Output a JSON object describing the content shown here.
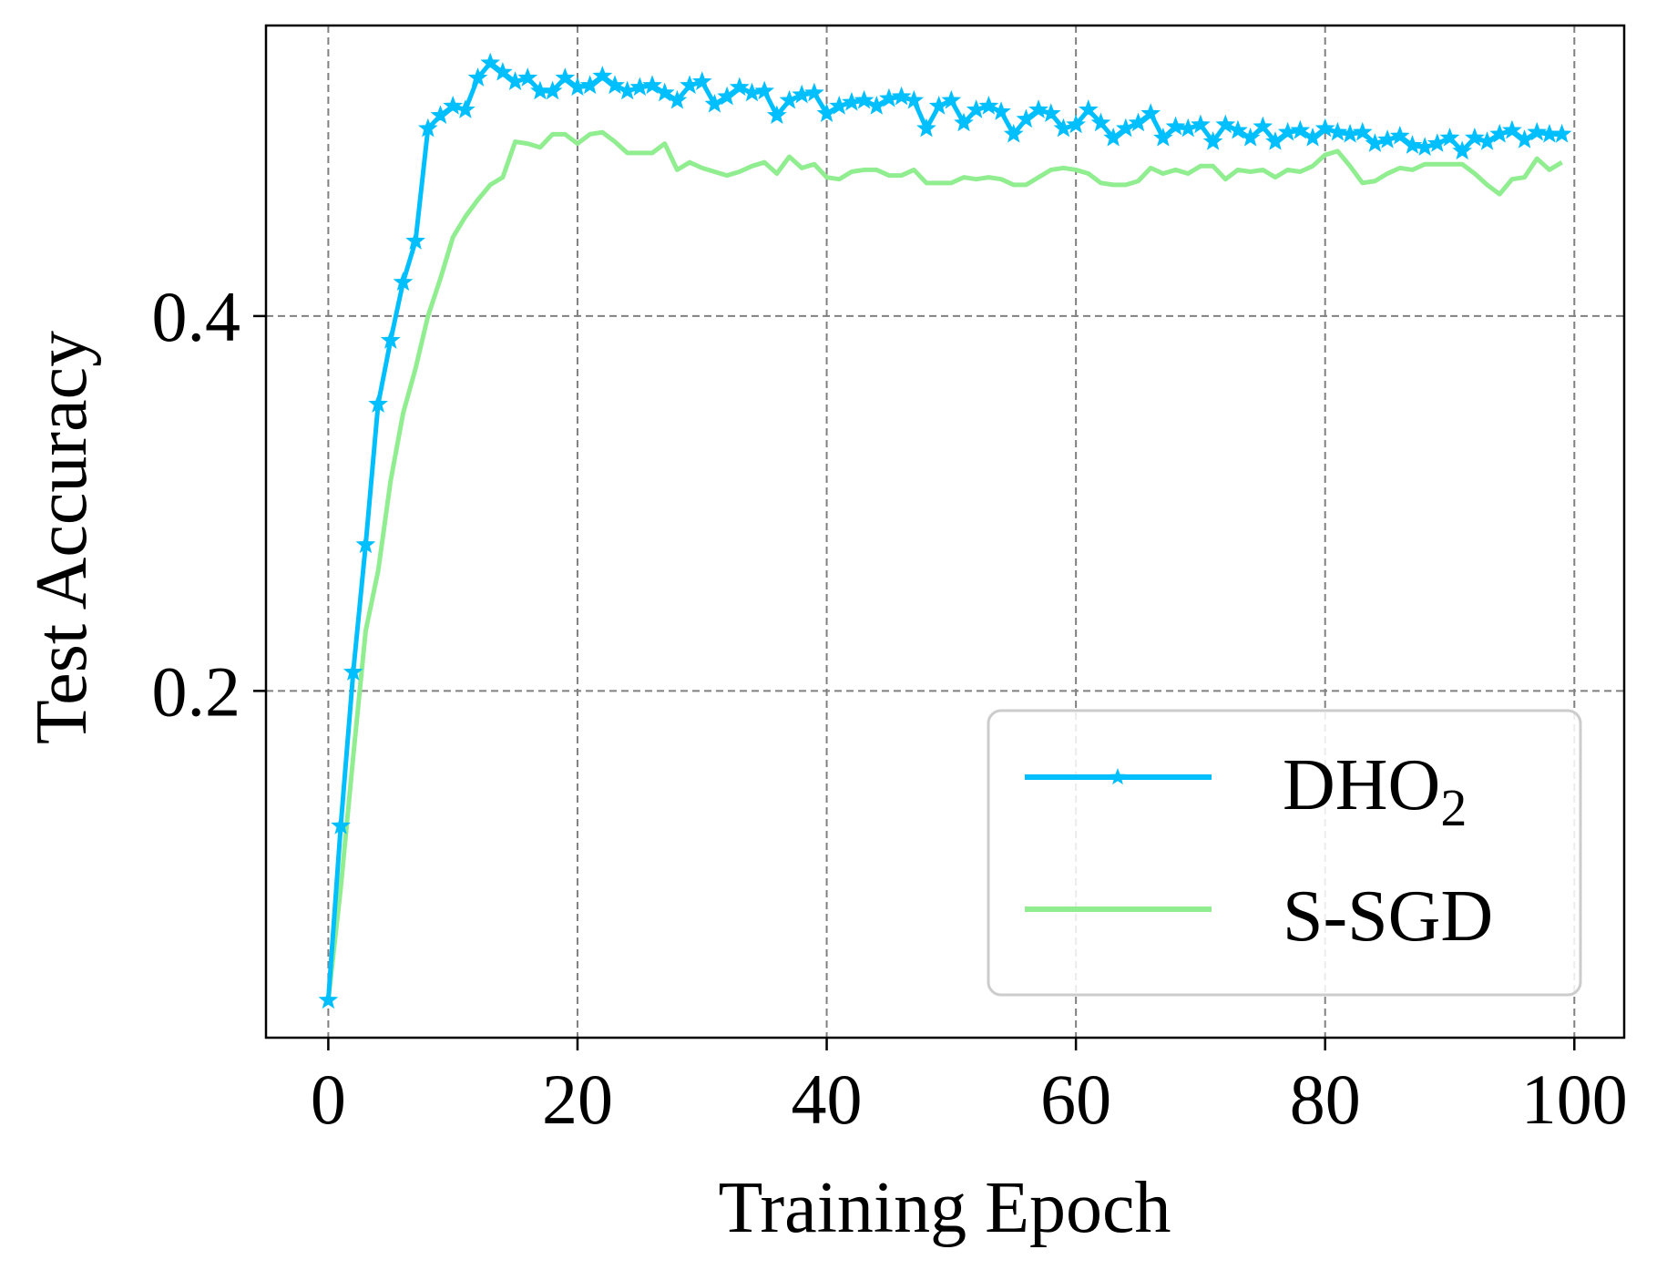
{
  "chart_data": {
    "type": "line",
    "title": "",
    "xlabel": "Training Epoch",
    "ylabel": "Test Accuracy",
    "xlim": [
      -5,
      104
    ],
    "ylim": [
      0.015,
      0.555
    ],
    "xticks": [
      0,
      20,
      40,
      60,
      80,
      100
    ],
    "xtick_labels": [
      "0",
      "20",
      "40",
      "60",
      "80",
      "100"
    ],
    "yticks": [
      0.2,
      0.4
    ],
    "ytick_labels": [
      "0.2",
      "0.4"
    ],
    "grid": true,
    "legend_position": "lower-right",
    "series": [
      {
        "name": "DHO",
        "name_subscript": "2",
        "color": "#00BFFF",
        "marker": "star",
        "x": [
          0,
          1,
          2,
          3,
          4,
          5,
          6,
          7,
          8,
          9,
          10,
          11,
          12,
          13,
          14,
          15,
          16,
          17,
          18,
          19,
          20,
          21,
          22,
          23,
          24,
          25,
          26,
          27,
          28,
          29,
          30,
          31,
          32,
          33,
          34,
          35,
          36,
          37,
          38,
          39,
          40,
          41,
          42,
          43,
          44,
          45,
          46,
          47,
          48,
          49,
          50,
          51,
          52,
          53,
          54,
          55,
          56,
          57,
          58,
          59,
          60,
          61,
          62,
          63,
          64,
          65,
          66,
          67,
          68,
          69,
          70,
          71,
          72,
          73,
          74,
          75,
          76,
          77,
          78,
          79,
          80,
          81,
          82,
          83,
          84,
          85,
          86,
          87,
          88,
          89,
          90,
          91,
          92,
          93,
          94,
          95,
          96,
          97,
          98,
          99
        ],
        "values": [
          0.035,
          0.128,
          0.21,
          0.278,
          0.353,
          0.387,
          0.418,
          0.44,
          0.5,
          0.507,
          0.512,
          0.51,
          0.527,
          0.535,
          0.53,
          0.525,
          0.527,
          0.52,
          0.52,
          0.527,
          0.522,
          0.523,
          0.528,
          0.523,
          0.52,
          0.522,
          0.523,
          0.519,
          0.515,
          0.523,
          0.525,
          0.513,
          0.517,
          0.522,
          0.519,
          0.52,
          0.507,
          0.515,
          0.518,
          0.519,
          0.508,
          0.512,
          0.514,
          0.515,
          0.512,
          0.516,
          0.517,
          0.515,
          0.5,
          0.512,
          0.515,
          0.503,
          0.51,
          0.512,
          0.509,
          0.497,
          0.505,
          0.51,
          0.508,
          0.5,
          0.502,
          0.51,
          0.503,
          0.495,
          0.5,
          0.503,
          0.508,
          0.495,
          0.501,
          0.5,
          0.502,
          0.493,
          0.502,
          0.499,
          0.495,
          0.501,
          0.493,
          0.498,
          0.499,
          0.495,
          0.5,
          0.498,
          0.497,
          0.498,
          0.492,
          0.494,
          0.496,
          0.491,
          0.49,
          0.492,
          0.495,
          0.488,
          0.495,
          0.493,
          0.497,
          0.499,
          0.494,
          0.498,
          0.497,
          0.497
        ]
      },
      {
        "name": "S-SGD",
        "color": "#90EE90",
        "marker": "none",
        "x": [
          0,
          1,
          2,
          3,
          4,
          5,
          6,
          7,
          8,
          9,
          10,
          11,
          12,
          13,
          14,
          15,
          16,
          17,
          18,
          19,
          20,
          21,
          22,
          23,
          24,
          25,
          26,
          27,
          28,
          29,
          30,
          31,
          32,
          33,
          34,
          35,
          36,
          37,
          38,
          39,
          40,
          41,
          42,
          43,
          44,
          45,
          46,
          47,
          48,
          49,
          50,
          51,
          52,
          53,
          54,
          55,
          56,
          57,
          58,
          59,
          60,
          61,
          62,
          63,
          64,
          65,
          66,
          67,
          68,
          69,
          70,
          71,
          72,
          73,
          74,
          75,
          76,
          77,
          78,
          79,
          80,
          81,
          82,
          83,
          84,
          85,
          86,
          87,
          88,
          89,
          90,
          91,
          92,
          93,
          94,
          95,
          96,
          97,
          98,
          99
        ],
        "values": [
          0.035,
          0.095,
          0.165,
          0.232,
          0.264,
          0.312,
          0.348,
          0.372,
          0.4,
          0.42,
          0.442,
          0.453,
          0.462,
          0.47,
          0.474,
          0.493,
          0.492,
          0.49,
          0.497,
          0.497,
          0.492,
          0.497,
          0.498,
          0.493,
          0.487,
          0.487,
          0.487,
          0.492,
          0.478,
          0.482,
          0.479,
          0.477,
          0.475,
          0.477,
          0.48,
          0.482,
          0.476,
          0.485,
          0.479,
          0.481,
          0.474,
          0.473,
          0.477,
          0.478,
          0.478,
          0.475,
          0.475,
          0.478,
          0.471,
          0.471,
          0.471,
          0.474,
          0.473,
          0.474,
          0.473,
          0.47,
          0.47,
          0.474,
          0.478,
          0.479,
          0.478,
          0.476,
          0.471,
          0.47,
          0.47,
          0.472,
          0.479,
          0.476,
          0.478,
          0.476,
          0.48,
          0.48,
          0.473,
          0.478,
          0.477,
          0.478,
          0.474,
          0.478,
          0.477,
          0.48,
          0.486,
          0.488,
          0.48,
          0.471,
          0.472,
          0.476,
          0.479,
          0.478,
          0.481,
          0.481,
          0.481,
          0.481,
          0.476,
          0.47,
          0.465,
          0.473,
          0.474,
          0.484,
          0.478,
          0.482
        ]
      }
    ]
  }
}
